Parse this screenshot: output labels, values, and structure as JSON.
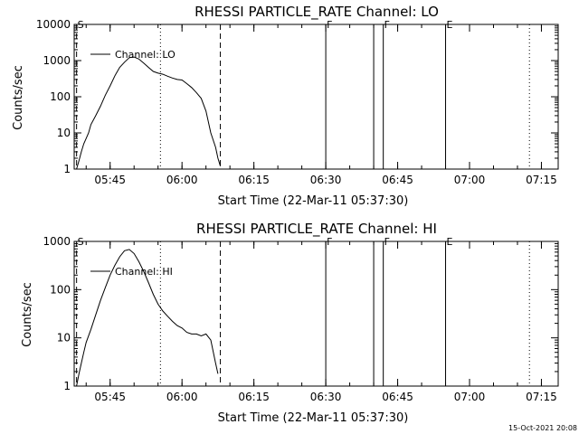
{
  "footer": {
    "timestamp": "15-Oct-2021 20:08"
  },
  "chart_data": [
    {
      "type": "line",
      "title": "RHESSI PARTICLE_RATE Channel: LO",
      "xlabel": "Start Time (22-Mar-11 05:37:30)",
      "ylabel": "Counts/sec",
      "yscale": "log",
      "ylim": [
        1,
        10000
      ],
      "y_ticks": [
        {
          "value": 1,
          "label": "1"
        },
        {
          "value": 10,
          "label": "10"
        },
        {
          "value": 100,
          "label": "100"
        },
        {
          "value": 1000,
          "label": "1000"
        },
        {
          "value": 10000,
          "label": "10000"
        }
      ],
      "xlim": [
        "05:37:30",
        "07:18:30"
      ],
      "x_ticks": [
        {
          "value": "05:45",
          "label": "05:45"
        },
        {
          "value": "06:00",
          "label": "06:00"
        },
        {
          "value": "06:15",
          "label": "06:15"
        },
        {
          "value": "06:30",
          "label": "06:30"
        },
        {
          "value": "06:45",
          "label": "06:45"
        },
        {
          "value": "07:00",
          "label": "07:00"
        },
        {
          "value": "07:15",
          "label": "07:15"
        }
      ],
      "grid": false,
      "legend": {
        "position": "top-left",
        "entries": [
          "Channel: LO"
        ]
      },
      "series": [
        {
          "name": "Channel: LO",
          "x": [
            "05:38:00",
            "05:38:30",
            "05:39:00",
            "05:39:30",
            "05:40:00",
            "05:40:30",
            "05:41:00",
            "05:42:00",
            "05:43:00",
            "05:44:00",
            "05:45:00",
            "05:46:00",
            "05:47:00",
            "05:48:00",
            "05:49:00",
            "05:50:00",
            "05:51:00",
            "05:52:00",
            "05:53:00",
            "05:54:00",
            "05:55:00",
            "05:56:00",
            "05:57:00",
            "05:58:00",
            "05:59:00",
            "06:00:00",
            "06:01:00",
            "06:02:00",
            "06:03:00",
            "06:04:00",
            "06:05:00",
            "06:06:00",
            "06:07:00",
            "06:07:30",
            "06:08:00"
          ],
          "y": [
            1.0,
            1.7,
            3,
            5,
            7,
            10,
            17,
            30,
            55,
            110,
            200,
            380,
            650,
            900,
            1200,
            1250,
            1100,
            850,
            650,
            500,
            450,
            420,
            370,
            330,
            300,
            290,
            230,
            180,
            130,
            90,
            40,
            10,
            4,
            2,
            1.2
          ]
        }
      ],
      "markers": [
        {
          "x": "05:38:00",
          "label": "S",
          "style": "dashed"
        },
        {
          "x": "05:55:30",
          "label": "",
          "style": "dotted"
        },
        {
          "x": "06:08:00",
          "label": "",
          "style": "dashed"
        },
        {
          "x": "06:30:00",
          "label": "F",
          "style": "solid"
        },
        {
          "x": "06:40:00",
          "label": "",
          "style": "solid"
        },
        {
          "x": "06:42:00",
          "label": "F",
          "style": "solid"
        },
        {
          "x": "06:55:00",
          "label": "E",
          "style": "solid"
        },
        {
          "x": "07:12:30",
          "label": "",
          "style": "dotted"
        }
      ]
    },
    {
      "type": "line",
      "title": "RHESSI PARTICLE_RATE Channel: HI",
      "xlabel": "Start Time (22-Mar-11 05:37:30)",
      "ylabel": "Counts/sec",
      "yscale": "log",
      "ylim": [
        1,
        1000
      ],
      "y_ticks": [
        {
          "value": 1,
          "label": "1"
        },
        {
          "value": 10,
          "label": "10"
        },
        {
          "value": 100,
          "label": "100"
        },
        {
          "value": 1000,
          "label": "1000"
        }
      ],
      "xlim": [
        "05:37:30",
        "07:18:30"
      ],
      "x_ticks": [
        {
          "value": "05:45",
          "label": "05:45"
        },
        {
          "value": "06:00",
          "label": "06:00"
        },
        {
          "value": "06:15",
          "label": "06:15"
        },
        {
          "value": "06:30",
          "label": "06:30"
        },
        {
          "value": "06:45",
          "label": "06:45"
        },
        {
          "value": "07:00",
          "label": "07:00"
        },
        {
          "value": "07:15",
          "label": "07:15"
        }
      ],
      "grid": false,
      "legend": {
        "position": "top-left",
        "entries": [
          "Channel: HI"
        ]
      },
      "series": [
        {
          "name": "Channel: HI",
          "x": [
            "05:38:00",
            "05:38:30",
            "05:39:00",
            "05:39:30",
            "05:40:00",
            "05:41:00",
            "05:42:00",
            "05:43:00",
            "05:44:00",
            "05:45:00",
            "05:46:00",
            "05:47:00",
            "05:48:00",
            "05:49:00",
            "05:50:00",
            "05:51:00",
            "05:52:00",
            "05:53:00",
            "05:54:00",
            "05:55:00",
            "05:56:00",
            "05:57:00",
            "05:58:00",
            "05:59:00",
            "06:00:00",
            "06:01:00",
            "06:02:00",
            "06:03:00",
            "06:04:00",
            "06:05:00",
            "06:06:00",
            "06:07:00",
            "06:07:30"
          ],
          "y": [
            1.0,
            1.8,
            3,
            5,
            8,
            15,
            30,
            60,
            110,
            200,
            320,
            480,
            640,
            680,
            560,
            380,
            240,
            140,
            80,
            50,
            36,
            28,
            22,
            18,
            16,
            13,
            12,
            12,
            11,
            12,
            9,
            3,
            1.8
          ]
        }
      ],
      "markers": [
        {
          "x": "05:38:00",
          "label": "S",
          "style": "dashed"
        },
        {
          "x": "05:55:30",
          "label": "",
          "style": "dotted"
        },
        {
          "x": "06:08:00",
          "label": "",
          "style": "dashed"
        },
        {
          "x": "06:30:00",
          "label": "F",
          "style": "solid"
        },
        {
          "x": "06:40:00",
          "label": "",
          "style": "solid"
        },
        {
          "x": "06:42:00",
          "label": "F",
          "style": "solid"
        },
        {
          "x": "06:55:00",
          "label": "E",
          "style": "solid"
        },
        {
          "x": "07:12:30",
          "label": "",
          "style": "dotted"
        }
      ]
    }
  ]
}
